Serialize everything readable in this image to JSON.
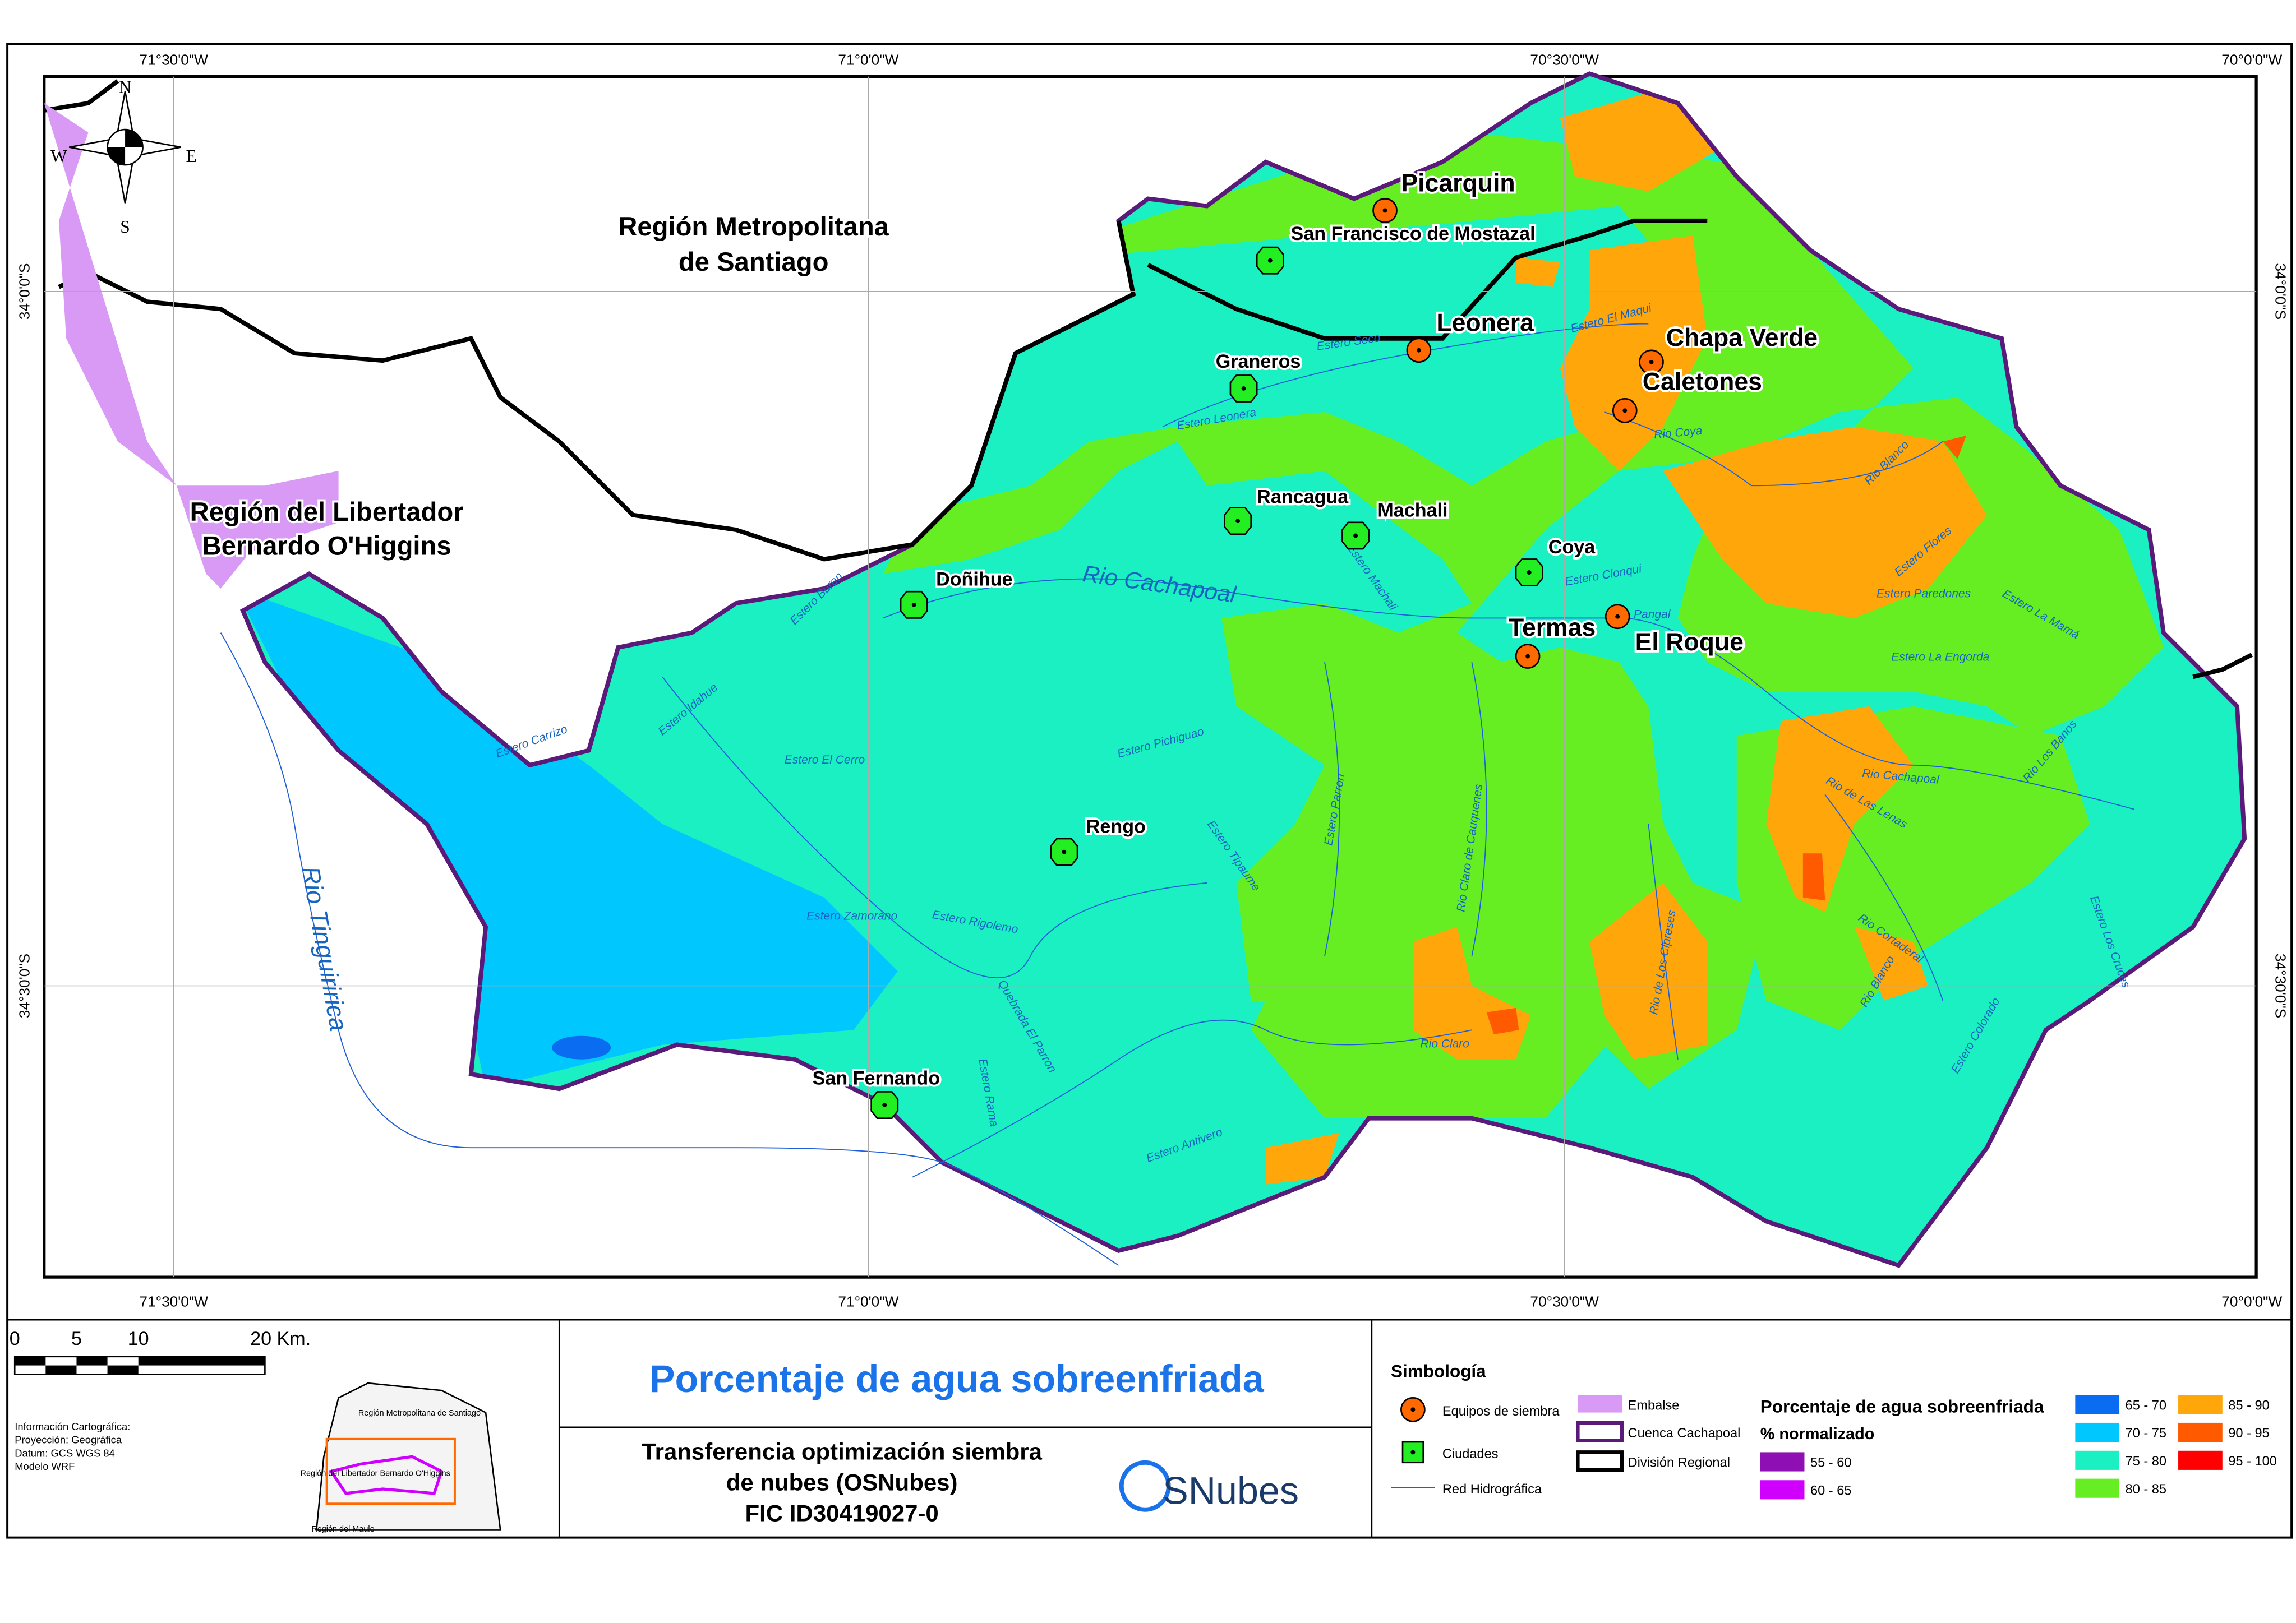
{
  "grid_labels": {
    "longitude": [
      "71°30'0\"W",
      "71°0'0\"W",
      "70°30'0\"W",
      "70°0'0\"W"
    ],
    "latitude": [
      "34°0'0\"S",
      "34°30'0\"S"
    ]
  },
  "compass": {
    "n": "N",
    "s": "S",
    "e": "E",
    "w": "W"
  },
  "regions": [
    {
      "lines": [
        "Región Metropolitana",
        "de Santiago"
      ]
    },
    {
      "lines": [
        "Región del Libertador",
        "Bernardo O'Higgins"
      ]
    }
  ],
  "equipment_sites": [
    "Picarquin",
    "Leonera",
    "Chapa Verde",
    "Caletones",
    "Termas",
    "El Roque"
  ],
  "cities": [
    "San Francisco de Mostazal",
    "Graneros",
    "Rancagua",
    "Machali",
    "Coya",
    "Doñihue",
    "Rengo",
    "San Fernando"
  ],
  "rivers": [
    "Rio Cachapoal",
    "Rio Tinguiririca",
    "Estero Leonera",
    "Estero Seco",
    "Estero El Maqui",
    "Rio Coya",
    "Rio Blanco",
    "Estero Machali",
    "Estero Clonqui",
    "Pangal",
    "Estero Paredones",
    "Estero La Engorda",
    "Estero Flores",
    "Estero Idahue",
    "Estero Buren",
    "Estero Carrizo",
    "Estero El Cerro",
    "Estero Pichiguao",
    "Estero Tipaume",
    "Estero Zamorano",
    "Estero Rigolemo",
    "Quebrada El Parron",
    "Estero Parron",
    "Rio Claro de Cauquenes",
    "Rio Claro",
    "Estero Antivero",
    "Estero Rama",
    "Rio Cachapoal",
    "Rio de Las Lenas",
    "Rio Cortaderal",
    "Rio de Los Cipreses",
    "Rio Blanco",
    "Estero Colorado",
    "Estero Los Cruces",
    "Rio Los Banos",
    "Estero La Mamá"
  ],
  "scale_bar": [
    "0",
    "5",
    "10",
    "20 Km."
  ],
  "inset": [
    "Región Metropolitana de Santiago",
    "Región del Libertador Bernardo O'Higgins",
    "Región del Maule"
  ],
  "info": [
    "Información Cartográfica:",
    "Proyección: Geográfica",
    "Datum: GCS WGS 84",
    "Modelo WRF"
  ],
  "title": "Porcentaje de agua sobreenfriada",
  "project": [
    "Transferencia optimización siembra",
    "de nubes (OSNubes)",
    "FIC ID30419027-0"
  ],
  "logo": "SNubes",
  "legend": {
    "title": "Simbología",
    "symbols": [
      "Equipos de siembra",
      "Ciudades",
      "Red Hidrográfica",
      "Embalse",
      "Cuenca Cachapoal",
      "División Regional"
    ],
    "scale_title": "Porcentaje de agua sobreenfriada",
    "scale_subtitle": "% normalizado",
    "classes": [
      {
        "label": "55 - 60",
        "color": "#8e0fb3"
      },
      {
        "label": "60 - 65",
        "color": "#d000ff"
      },
      {
        "label": "65 - 70",
        "color": "#0a6cf0"
      },
      {
        "label": "70 - 75",
        "color": "#00c8ff"
      },
      {
        "label": "75 - 80",
        "color": "#1af0c2"
      },
      {
        "label": "80 - 85",
        "color": "#66ee22"
      },
      {
        "label": "85 - 90",
        "color": "#ffa60a"
      },
      {
        "label": "90 - 95",
        "color": "#ff5a00"
      },
      {
        "label": "95 - 100",
        "color": "#ff0000"
      }
    ]
  }
}
